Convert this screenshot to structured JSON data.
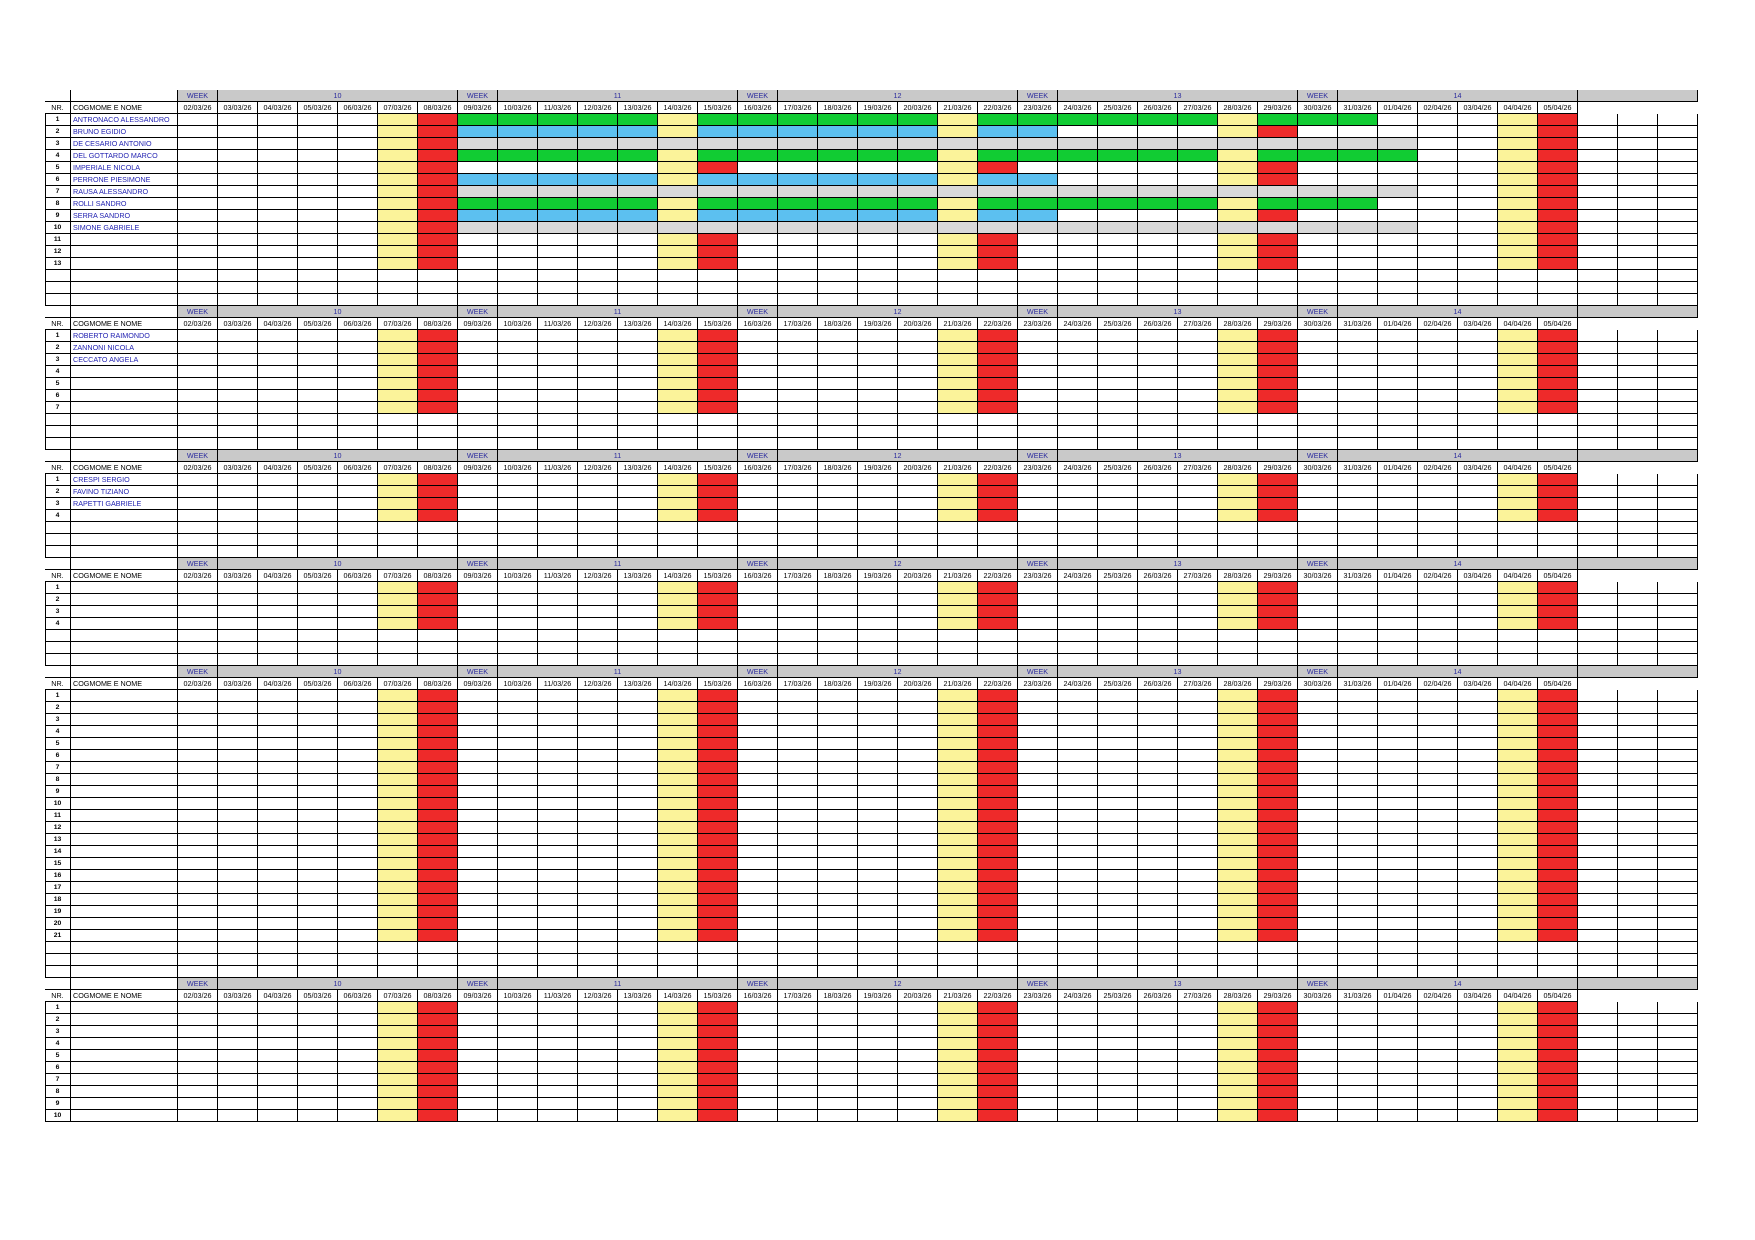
{
  "week_label": "WEEK",
  "weeks": [
    {
      "number": "10",
      "span": 7
    },
    {
      "number": "11",
      "span": 7
    },
    {
      "number": "12",
      "span": 7
    },
    {
      "number": "13",
      "span": 7
    },
    {
      "number": "14",
      "span": 7
    }
  ],
  "nr_header": "NR.",
  "name_header": "COGMOME E NOME",
  "dates": [
    "02/03/26",
    "03/03/26",
    "04/03/26",
    "05/03/26",
    "06/03/26",
    "07/03/26",
    "08/03/26",
    "09/03/26",
    "10/03/26",
    "11/03/26",
    "12/03/26",
    "13/03/26",
    "14/03/26",
    "15/03/26",
    "16/03/26",
    "17/03/26",
    "18/03/26",
    "19/03/26",
    "20/03/26",
    "21/03/26",
    "22/03/26",
    "23/03/26",
    "24/03/26",
    "25/03/26",
    "26/03/26",
    "27/03/26",
    "28/03/26",
    "29/03/26",
    "30/03/26",
    "31/03/26",
    "01/04/26",
    "02/04/26",
    "03/04/26",
    "04/04/26",
    "05/04/26"
  ],
  "weekend": {
    "saturday_color": "#fbf39a",
    "sunday_color": "#ee2a2a"
  },
  "legend_colors": {
    "blue": "#5cc0f0",
    "green": "#11cc33",
    "grey": "#d9d9d9"
  },
  "sections": [
    {
      "rows": 13,
      "names": [
        "ANTRONACO ALESSANDRO",
        "BRUNO EGIDIO",
        "DE CESARIO ANTONIO",
        "DEL GOTTARDO MARCO",
        "IMPERIALE NICOLA",
        "PERRONE PIESIMONE",
        "RAUSA ALESSANDRO",
        "ROLLI SANDRO",
        "SERRA SANDRO",
        "SIMONE GABRIELE",
        "",
        "",
        ""
      ],
      "extra_rows": 3
    },
    {
      "rows": 7,
      "names": [
        "ROBERTO RAIMONDO",
        "ZANNONI NICOLA",
        "CECCATO ANGELA",
        "",
        "",
        "",
        ""
      ],
      "extra_rows": 3
    },
    {
      "rows": 4,
      "names": [
        "CRESPI SERGIO",
        "FAVINO TIZIANO",
        "RAPETTI GABRIELE",
        ""
      ],
      "extra_rows": 3
    },
    {
      "rows": 4,
      "names": [
        "",
        "",
        "",
        ""
      ],
      "extra_rows": 3
    },
    {
      "rows": 21,
      "names": [
        "",
        "",
        "",
        "",
        "",
        "",
        "",
        "",
        "",
        "",
        "",
        "",
        "",
        "",
        "",
        "",
        "",
        "",
        "",
        "",
        ""
      ],
      "extra_rows": 3
    },
    {
      "rows": 10,
      "names": [
        "",
        "",
        "",
        "",
        "",
        "",
        "",
        "",
        "",
        ""
      ],
      "extra_rows": 0
    }
  ],
  "assignments": {
    "1": {
      "green": [
        7,
        8,
        9,
        10,
        11,
        13,
        14,
        15,
        16,
        17,
        18,
        20,
        21,
        22,
        23,
        24,
        25,
        27,
        28,
        29
      ]
    },
    "2": {
      "blue": [
        7,
        8,
        9,
        10,
        11,
        13,
        14,
        15,
        16,
        17,
        18,
        20,
        21
      ]
    },
    "3": {
      "grey": [
        7,
        8,
        9,
        10,
        11,
        12,
        13,
        14,
        15,
        16,
        17,
        18,
        19,
        20,
        21,
        22,
        23,
        24,
        25,
        26,
        27,
        28,
        29,
        30
      ]
    },
    "4": {
      "green": [
        7,
        8,
        9,
        10,
        11,
        13,
        14,
        15,
        16,
        17,
        18,
        20,
        21,
        22,
        23,
        24,
        25,
        27,
        28,
        29,
        30
      ]
    },
    "6": {
      "blue": [
        7,
        8,
        9,
        10,
        11,
        13,
        14,
        15,
        16,
        17,
        18,
        20,
        21
      ]
    },
    "7": {
      "grey": [
        7,
        8,
        9,
        10,
        11,
        12,
        13,
        14,
        15,
        16,
        17,
        18,
        19,
        20,
        21,
        22,
        23,
        24,
        25,
        26,
        27,
        28,
        29,
        30
      ]
    },
    "8": {
      "green": [
        7,
        8,
        9,
        10,
        11,
        13,
        14,
        15,
        16,
        17,
        18,
        20,
        21,
        22,
        23,
        24,
        25,
        27,
        28,
        29
      ]
    },
    "9": {
      "blue": [
        7,
        8,
        9,
        10,
        11,
        13,
        14,
        15,
        16,
        17,
        18,
        20,
        21
      ]
    },
    "10": {
      "grey": [
        7,
        8,
        9,
        10,
        11,
        12,
        13,
        14,
        15,
        16,
        17,
        18,
        19,
        20,
        21,
        22,
        23,
        24,
        25,
        26,
        27,
        28,
        29,
        30
      ]
    }
  }
}
